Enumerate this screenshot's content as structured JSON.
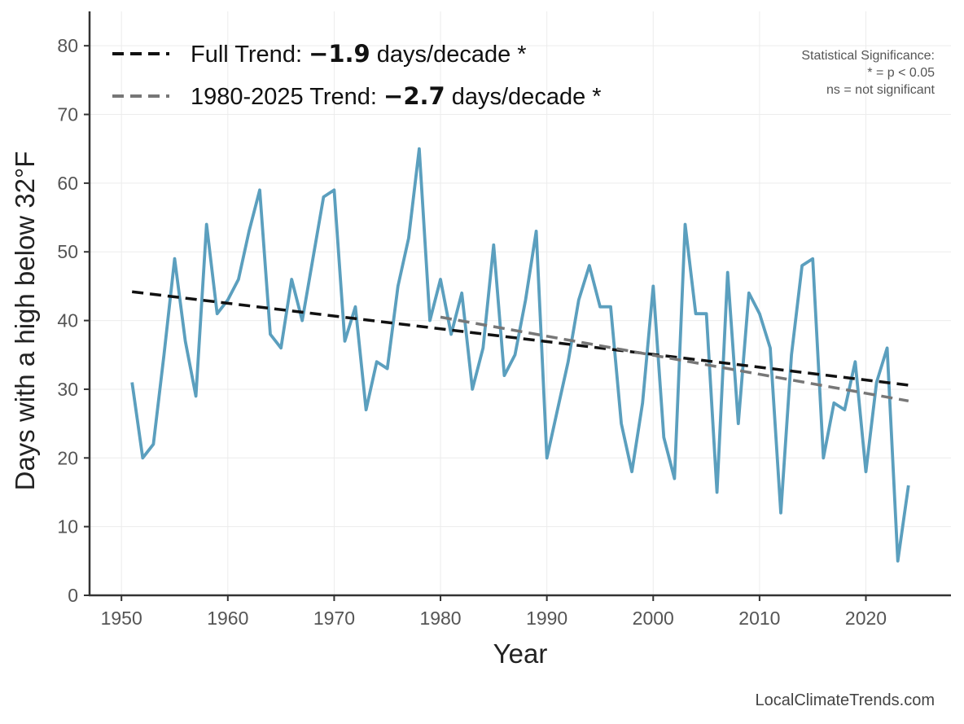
{
  "chart_data": {
    "type": "line",
    "xlabel": "Year",
    "ylabel": "Days with a high below 32°F",
    "xlim": [
      1947,
      2028
    ],
    "ylim": [
      0,
      85
    ],
    "xticks": [
      1950,
      1960,
      1970,
      1980,
      1990,
      2000,
      2010,
      2020
    ],
    "yticks": [
      0,
      10,
      20,
      30,
      40,
      50,
      60,
      70,
      80
    ],
    "grid": true,
    "legend_placement": "top-left",
    "series": [
      {
        "color": "#5b9fbe",
        "x": [
          1951,
          1952,
          1953,
          1954,
          1955,
          1956,
          1957,
          1958,
          1959,
          1960,
          1961,
          1962,
          1963,
          1964,
          1965,
          1966,
          1967,
          1968,
          1969,
          1970,
          1971,
          1972,
          1973,
          1974,
          1975,
          1976,
          1977,
          1978,
          1979,
          1980,
          1981,
          1982,
          1983,
          1984,
          1985,
          1986,
          1987,
          1988,
          1989,
          1990,
          1991,
          1992,
          1993,
          1994,
          1995,
          1996,
          1997,
          1998,
          1999,
          2000,
          2001,
          2002,
          2003,
          2004,
          2005,
          2006,
          2007,
          2008,
          2009,
          2010,
          2011,
          2012,
          2013,
          2014,
          2015,
          2016,
          2017,
          2018,
          2019,
          2020,
          2021,
          2022,
          2023,
          2024
        ],
        "values": [
          31,
          20,
          22,
          35,
          49,
          37,
          29,
          54,
          41,
          43,
          46,
          53,
          59,
          38,
          36,
          46,
          40,
          49,
          58,
          59,
          37,
          42,
          27,
          34,
          33,
          45,
          52,
          65,
          40,
          46,
          38,
          44,
          30,
          36,
          51,
          32,
          35,
          43,
          53,
          20,
          27,
          34,
          43,
          48,
          42,
          42,
          25,
          18,
          28,
          45,
          23,
          17,
          54,
          41,
          41,
          15,
          47,
          25,
          44,
          41,
          36,
          12,
          35,
          48,
          49,
          20,
          28,
          27,
          34,
          18,
          31,
          36,
          5,
          16
        ]
      },
      {
        "name": "Full Trend",
        "style": "dashed",
        "color": "#111111",
        "x": [
          1951,
          2024
        ],
        "values": [
          44.2,
          30.6
        ]
      },
      {
        "name": "1980-2025 Trend",
        "style": "dashed",
        "color": "#777777",
        "x": [
          1980,
          2024
        ],
        "values": [
          40.5,
          28.3
        ]
      }
    ],
    "legend": [
      {
        "prefix": "Full Trend: ",
        "value": "−1.9",
        "suffix": " days/decade *",
        "color": "#111111"
      },
      {
        "prefix": "1980-2025 Trend: ",
        "value": "−2.7",
        "suffix": " days/decade *",
        "color": "#777777"
      }
    ],
    "annotations": {
      "significance": [
        "Statistical Significance:",
        "* = p < 0.05",
        "ns = not significant"
      ],
      "source": "LocalClimateTrends.com"
    }
  }
}
